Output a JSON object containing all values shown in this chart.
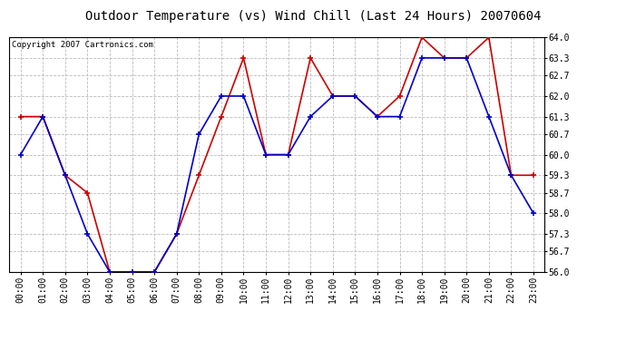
{
  "title": "Outdoor Temperature (vs) Wind Chill (Last 24 Hours) 20070604",
  "copyright": "Copyright 2007 Cartronics.com",
  "hours": [
    "00:00",
    "01:00",
    "02:00",
    "03:00",
    "04:00",
    "05:00",
    "06:00",
    "07:00",
    "08:00",
    "09:00",
    "10:00",
    "11:00",
    "12:00",
    "13:00",
    "14:00",
    "15:00",
    "16:00",
    "17:00",
    "18:00",
    "19:00",
    "20:00",
    "21:00",
    "22:00",
    "23:00"
  ],
  "temp": [
    61.3,
    61.3,
    59.3,
    58.7,
    56.0,
    56.0,
    56.0,
    57.3,
    59.3,
    61.3,
    63.3,
    60.0,
    60.0,
    63.3,
    62.0,
    62.0,
    61.3,
    62.0,
    64.0,
    63.3,
    63.3,
    64.0,
    59.3,
    59.3
  ],
  "windchill": [
    60.0,
    61.3,
    59.3,
    57.3,
    56.0,
    56.0,
    56.0,
    57.3,
    60.7,
    62.0,
    62.0,
    60.0,
    60.0,
    61.3,
    62.0,
    62.0,
    61.3,
    61.3,
    63.3,
    63.3,
    63.3,
    61.3,
    59.3,
    58.0
  ],
  "temp_color": "#cc0000",
  "windchill_color": "#0000cc",
  "ylim_min": 56.0,
  "ylim_max": 64.0,
  "yticks": [
    56.0,
    56.7,
    57.3,
    58.0,
    58.7,
    59.3,
    60.0,
    60.7,
    61.3,
    62.0,
    62.7,
    63.3,
    64.0
  ],
  "bg_color": "#ffffff",
  "grid_color": "#bbbbbb",
  "title_fontsize": 10,
  "tick_fontsize": 7,
  "copyright_fontsize": 6.5,
  "linewidth": 1.2,
  "markersize": 4
}
